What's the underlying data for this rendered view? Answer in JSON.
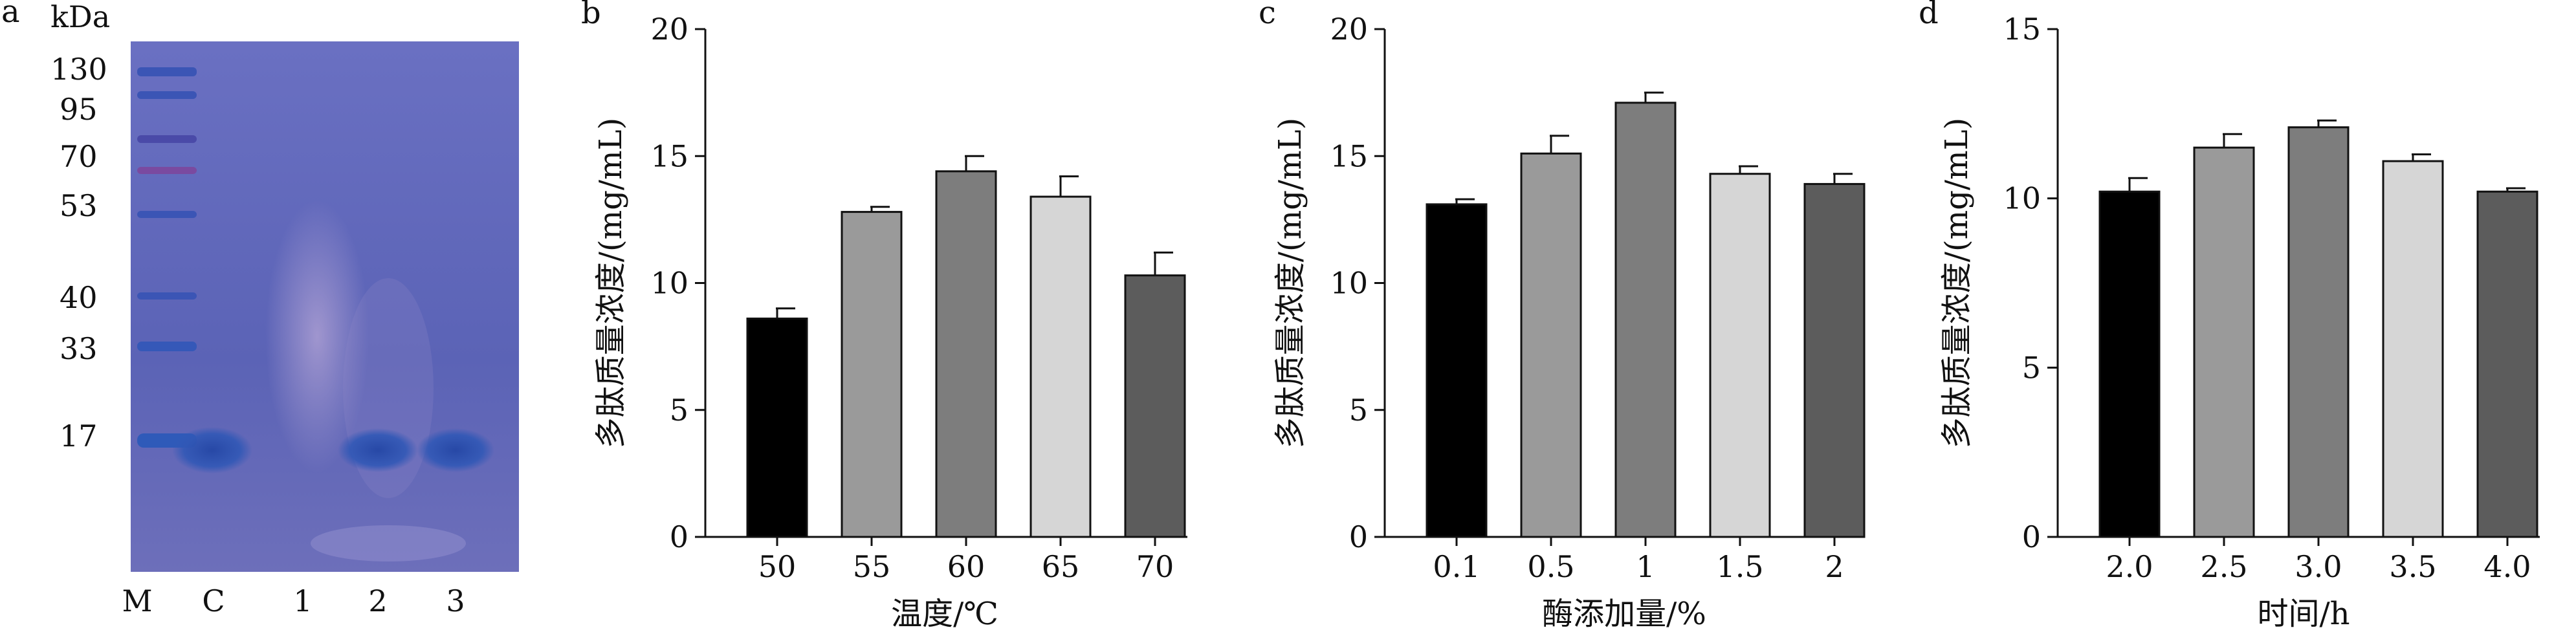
{
  "gel": {
    "panel_label": "a",
    "unit": "kDa",
    "markers": [
      "130",
      "95",
      "70",
      "53",
      "40",
      "33",
      "17"
    ],
    "lanes": [
      "M",
      "C",
      "1",
      "2",
      "3"
    ],
    "colors": {
      "background": "#5b63b6",
      "band": "#2f52b0"
    }
  },
  "chart_data": [
    {
      "panel_label": "b",
      "type": "bar",
      "categories": [
        "50",
        "55",
        "60",
        "65",
        "70"
      ],
      "values": [
        8.6,
        12.8,
        14.4,
        13.4,
        10.3
      ],
      "errors": [
        0.4,
        0.2,
        0.6,
        0.8,
        0.9
      ],
      "xlabel": "温度/℃",
      "ylabel": "多肽质量浓度/(mg/mL)",
      "ylim": [
        0,
        20
      ],
      "yticks": [
        "0",
        "5",
        "10",
        "15",
        "20"
      ],
      "colors": [
        "#000000",
        "#9a9a9a",
        "#7d7d7d",
        "#d6d6d6",
        "#5c5c5c"
      ]
    },
    {
      "panel_label": "c",
      "type": "bar",
      "categories": [
        "0.1",
        "0.5",
        "1",
        "1.5",
        "2"
      ],
      "values": [
        13.1,
        15.1,
        17.1,
        14.3,
        13.9
      ],
      "errors": [
        0.2,
        0.7,
        0.4,
        0.3,
        0.4
      ],
      "xlabel": "酶添加量/%",
      "ylabel": "多肽质量浓度/(mg/mL)",
      "ylim": [
        0,
        20
      ],
      "yticks": [
        "0",
        "5",
        "10",
        "15",
        "20"
      ],
      "colors": [
        "#000000",
        "#9a9a9a",
        "#7d7d7d",
        "#d6d6d6",
        "#5c5c5c"
      ]
    },
    {
      "panel_label": "d",
      "type": "bar",
      "categories": [
        "2.0",
        "2.5",
        "3.0",
        "3.5",
        "4.0"
      ],
      "values": [
        10.2,
        11.5,
        12.1,
        11.1,
        10.2
      ],
      "errors": [
        0.4,
        0.4,
        0.2,
        0.2,
        0.1
      ],
      "xlabel": "时间/h",
      "ylabel": "多肽质量浓度/(mg/mL)",
      "ylim": [
        0,
        15
      ],
      "yticks": [
        "0",
        "5",
        "10",
        "15"
      ],
      "colors": [
        "#000000",
        "#9a9a9a",
        "#7d7d7d",
        "#d6d6d6",
        "#5c5c5c"
      ]
    }
  ]
}
